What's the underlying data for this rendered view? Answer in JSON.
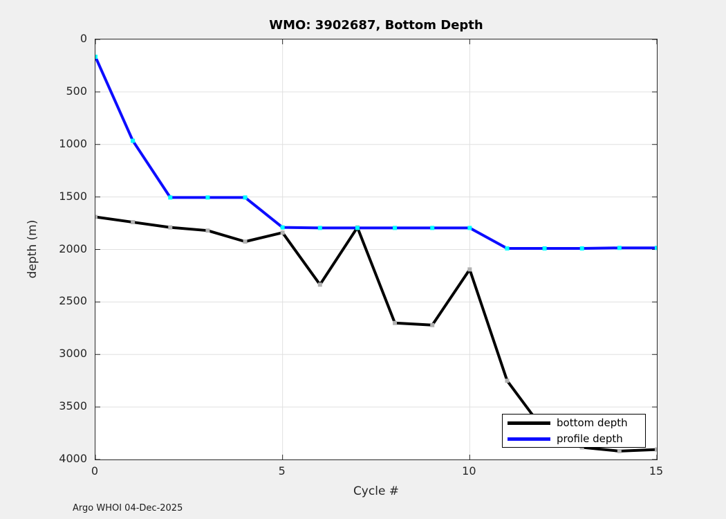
{
  "figure": {
    "footer": "Argo WHOI 04-Dec-2025",
    "background": "#f0f0f0",
    "plot_background": "#ffffff",
    "axis_color": "#262626",
    "grid_color": "#e0e0e0"
  },
  "chart_data": {
    "type": "line",
    "title": "WMO: 3902687, Bottom Depth",
    "xlabel": "Cycle #",
    "ylabel": "depth (m)",
    "x": [
      0,
      1,
      2,
      3,
      4,
      5,
      6,
      7,
      8,
      9,
      10,
      11,
      12,
      13,
      14,
      15
    ],
    "series": [
      {
        "name": "bottom depth",
        "color": "#000000",
        "marker_color": "#b2b2b2",
        "values": [
          1690,
          1740,
          1790,
          1820,
          1925,
          1840,
          2335,
          1790,
          2700,
          2720,
          2190,
          3250,
          3730,
          3885,
          3920,
          3905
        ]
      },
      {
        "name": "profile depth",
        "color": "#0d0dff",
        "marker_color": "#00ffff",
        "values": [
          165,
          965,
          1505,
          1505,
          1505,
          1790,
          1795,
          1795,
          1795,
          1795,
          1795,
          1990,
          1990,
          1990,
          1985,
          1985
        ]
      }
    ],
    "xlim": [
      0,
      15
    ],
    "ylim": [
      0,
      4000
    ],
    "y_axis_reversed": true,
    "xticks": [
      0,
      5,
      10,
      15
    ],
    "yticks": [
      0,
      500,
      1000,
      1500,
      2000,
      2500,
      3000,
      3500,
      4000
    ],
    "grid": true,
    "legend_position": "bottom-right"
  }
}
